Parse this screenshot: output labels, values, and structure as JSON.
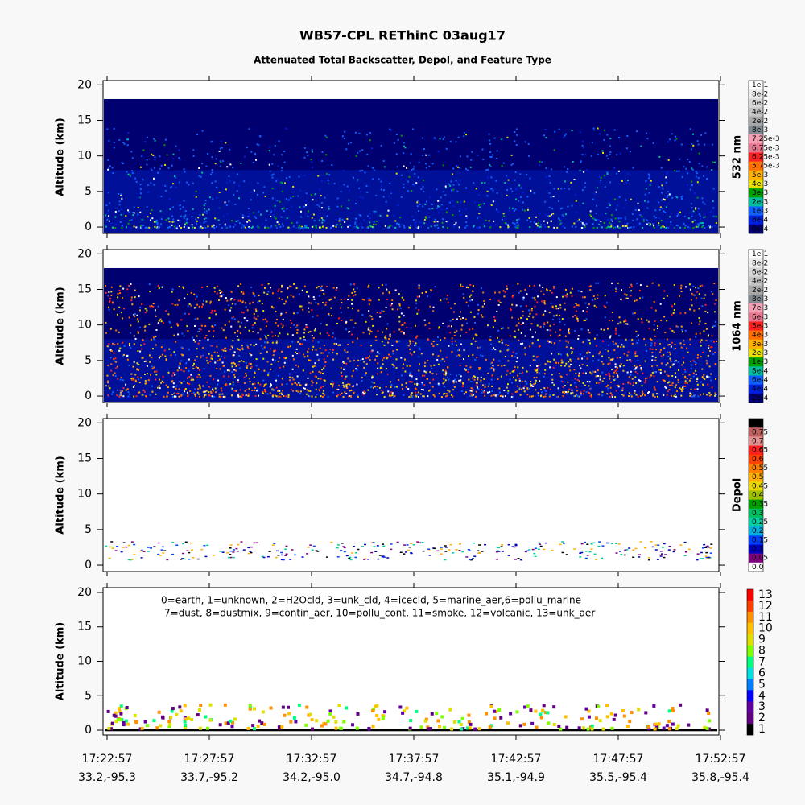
{
  "title": "WB57-CPL REThinC 03aug17",
  "subtitle": "Attenuated Total Backscatter, Depol, and Feature Type",
  "chart_data": [
    {
      "type": "heatmap",
      "y_label": "Altitude (km)",
      "ylim": [
        -0.9,
        20.6
      ],
      "yticks": [
        0,
        5,
        10,
        15,
        20
      ],
      "colorbar_label": "532 nm",
      "colorbar": [
        {
          "label": "1e-1",
          "color": "#ffffff"
        },
        {
          "label": "8e-2",
          "color": "#ececec"
        },
        {
          "label": "6e-2",
          "color": "#d8d8d8"
        },
        {
          "label": "4e-2",
          "color": "#c4c4c4"
        },
        {
          "label": "2e-2",
          "color": "#a8a8a8"
        },
        {
          "label": "8e-3",
          "color": "#808890"
        },
        {
          "label": "7.25e-3",
          "color": "#f4a0b4"
        },
        {
          "label": "6.75e-3",
          "color": "#e87890"
        },
        {
          "label": "6.25e-3",
          "color": "#ff2020"
        },
        {
          "label": "5.75e-3",
          "color": "#ff7000"
        },
        {
          "label": "5e-3",
          "color": "#ffb000"
        },
        {
          "label": "4e-3",
          "color": "#e8e000"
        },
        {
          "label": "3e-3",
          "color": "#00a000"
        },
        {
          "label": "2e-3",
          "color": "#00c0a0"
        },
        {
          "label": "1e-3",
          "color": "#1060ff"
        },
        {
          "label": "8e-4",
          "color": "#0020e0"
        },
        {
          "label": "6e-4",
          "color": "#000070"
        }
      ]
    },
    {
      "type": "heatmap",
      "y_label": "Altitude (km)",
      "ylim": [
        -0.9,
        20.6
      ],
      "yticks": [
        0,
        5,
        10,
        15,
        20
      ],
      "colorbar_label": "1064 nm",
      "colorbar": [
        {
          "label": "1e-1",
          "color": "#ffffff"
        },
        {
          "label": "8e-2",
          "color": "#ececec"
        },
        {
          "label": "6e-2",
          "color": "#d8d8d8"
        },
        {
          "label": "4e-2",
          "color": "#c4c4c4"
        },
        {
          "label": "2e-2",
          "color": "#a8a8a8"
        },
        {
          "label": "8e-3",
          "color": "#808890"
        },
        {
          "label": "7e-3",
          "color": "#f4a0b4"
        },
        {
          "label": "6e-3",
          "color": "#e87890"
        },
        {
          "label": "5e-3",
          "color": "#ff2020"
        },
        {
          "label": "4e-3",
          "color": "#ff7000"
        },
        {
          "label": "3e-3",
          "color": "#ffb000"
        },
        {
          "label": "2e-3",
          "color": "#e8e000"
        },
        {
          "label": "1e-3",
          "color": "#00a000"
        },
        {
          "label": "8e-4",
          "color": "#00c0a0"
        },
        {
          "label": "6e-4",
          "color": "#1060ff"
        },
        {
          "label": "4e-4",
          "color": "#0020e0"
        },
        {
          "label": "2e-4",
          "color": "#000070"
        }
      ]
    },
    {
      "type": "heatmap",
      "y_label": "Altitude (km)",
      "ylim": [
        -0.9,
        20.6
      ],
      "yticks": [
        0,
        5,
        10,
        15,
        20
      ],
      "colorbar_label": "Depol",
      "colorbar": [
        {
          "label": "0.8",
          "color": "#000000"
        },
        {
          "label": "0.75",
          "color": "#c06060"
        },
        {
          "label": "0.7",
          "color": "#e09090"
        },
        {
          "label": "0.65",
          "color": "#ff2020"
        },
        {
          "label": "0.6",
          "color": "#ff4000"
        },
        {
          "label": "0.55",
          "color": "#ff8000"
        },
        {
          "label": "0.5",
          "color": "#ffb000"
        },
        {
          "label": "0.45",
          "color": "#e8d800"
        },
        {
          "label": "0.4",
          "color": "#a0c000"
        },
        {
          "label": "0.35",
          "color": "#00a000"
        },
        {
          "label": "0.3",
          "color": "#00c060"
        },
        {
          "label": "0.25",
          "color": "#00d0a0"
        },
        {
          "label": "0.2",
          "color": "#00b0e0"
        },
        {
          "label": "0.15",
          "color": "#0040ff"
        },
        {
          "label": "0.1",
          "color": "#0000c0"
        },
        {
          "label": "0.05",
          "color": "#800080"
        },
        {
          "label": "0.0",
          "color": "#ffffff"
        }
      ]
    },
    {
      "type": "heatmap",
      "y_label": "Altitude (km)",
      "ylim": [
        -0.7,
        20.7
      ],
      "yticks": [
        0,
        5,
        10,
        15,
        20
      ],
      "legend_lines": [
        "0=earth, 1=unknown, 2=H2Ocld, 3=unk_cld, 4=icecld, 5=marine_aer,6=pollu_marine",
        "7=dust, 8=dustmix, 9=contin_aer, 10=pollu_cont, 11=smoke, 12=volcanic, 13=unk_aer"
      ],
      "colorbar": [
        {
          "label": "13",
          "color": "#ff0000"
        },
        {
          "label": "12",
          "color": "#ff4000"
        },
        {
          "label": "11",
          "color": "#ff9000"
        },
        {
          "label": "10",
          "color": "#ffc000"
        },
        {
          "label": "9",
          "color": "#e0e000"
        },
        {
          "label": "8",
          "color": "#80ff00"
        },
        {
          "label": "7",
          "color": "#00ff80"
        },
        {
          "label": "6",
          "color": "#00e0e0"
        },
        {
          "label": "5",
          "color": "#0080ff"
        },
        {
          "label": "4",
          "color": "#0000ff"
        },
        {
          "label": "3",
          "color": "#6000a0"
        },
        {
          "label": "2",
          "color": "#600080"
        },
        {
          "label": "1",
          "color": "#000000"
        }
      ],
      "x_labels": [
        "17:22:57",
        "17:27:57",
        "17:32:57",
        "17:37:57",
        "17:42:57",
        "17:47:57",
        "17:52:57"
      ],
      "x_sublabels": [
        "33.2,-95.3",
        "33.7,-95.2",
        "34.2,-95.0",
        "34.7,-94.8",
        "35.1,-94.9",
        "35.5,-95.4",
        "35.8,-95.4"
      ]
    }
  ]
}
